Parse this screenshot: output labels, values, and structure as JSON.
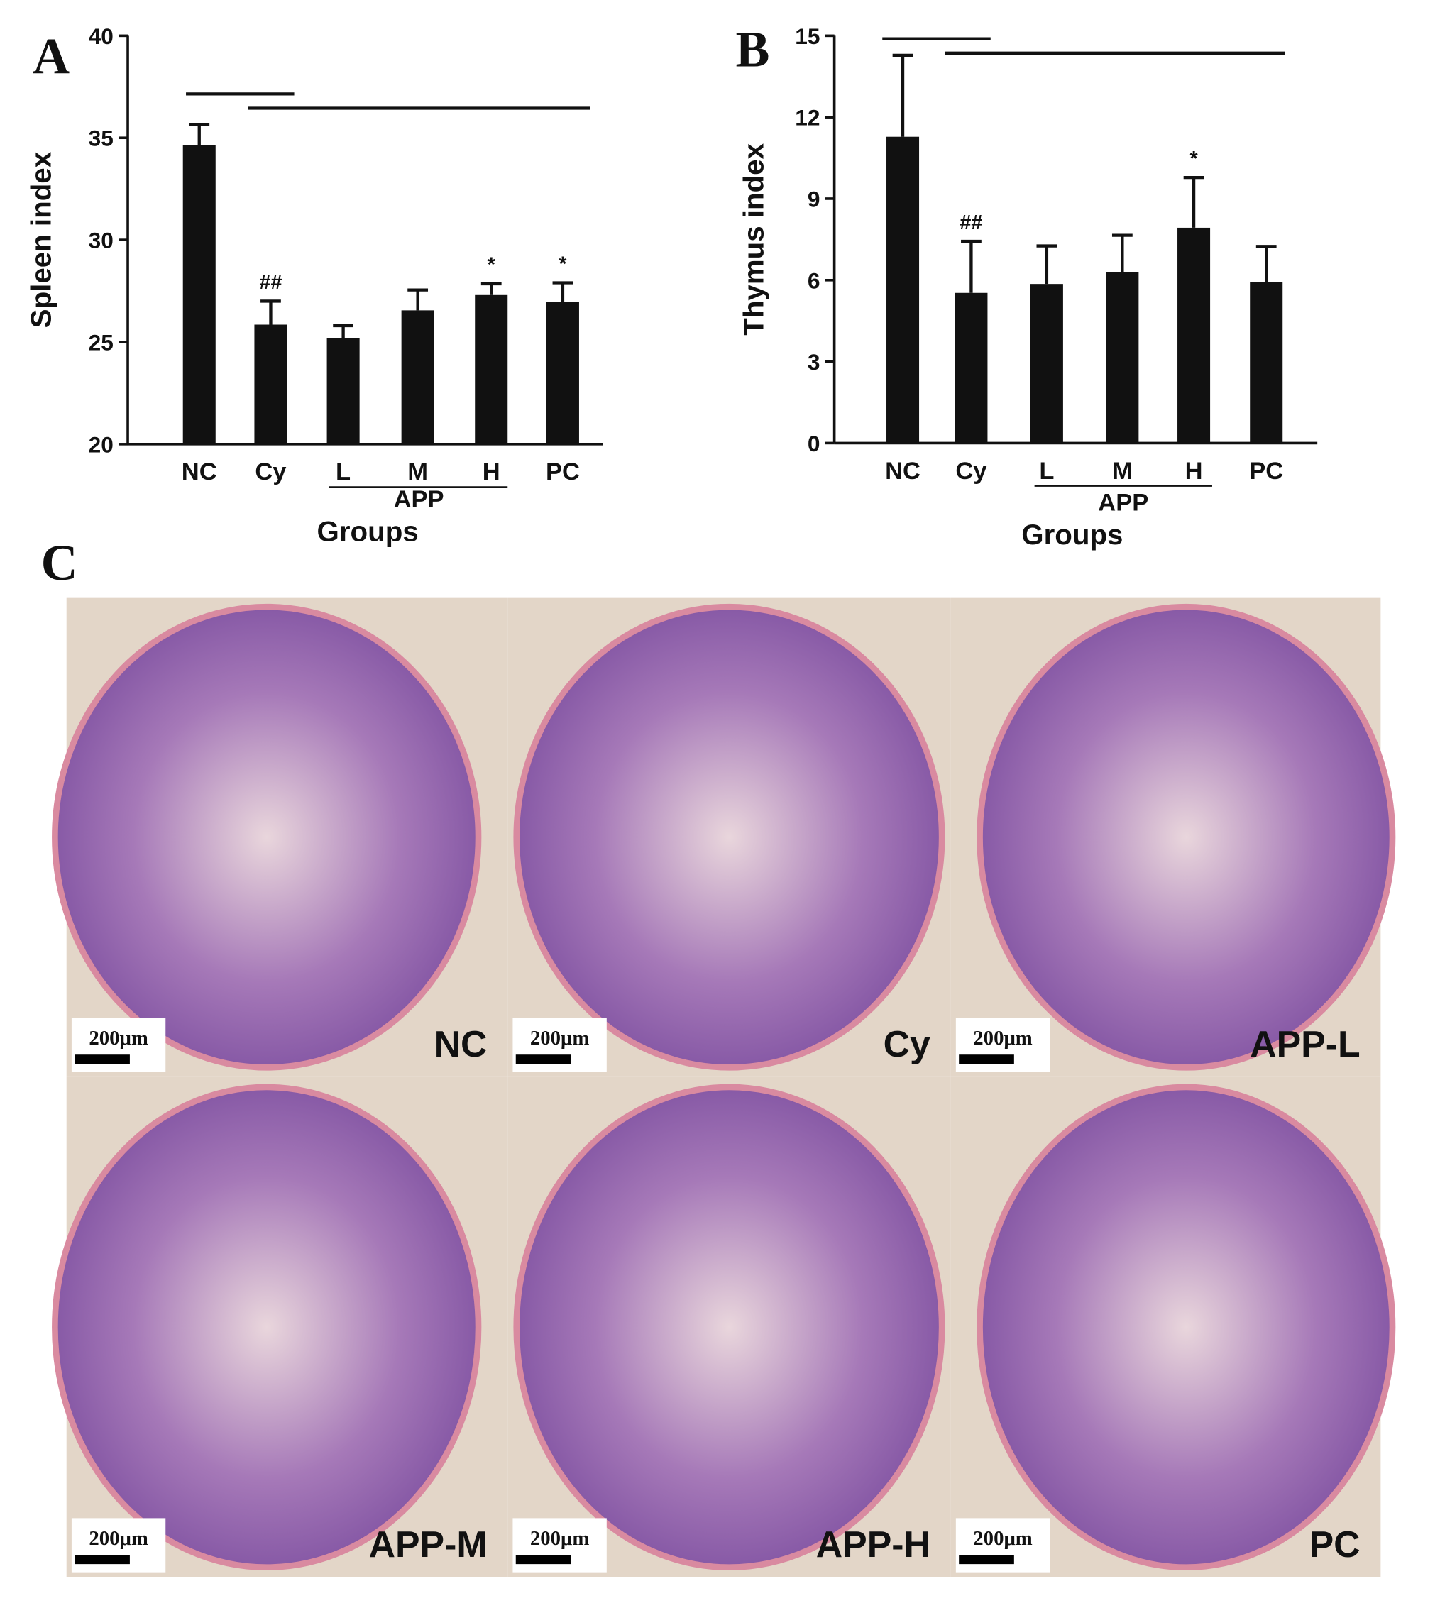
{
  "chart_data": [
    {
      "type": "bar",
      "panel": "A",
      "y_label": "Spleen index",
      "x_label": "Groups",
      "group_label": "APP",
      "categories": [
        "NC",
        "Cy",
        "L",
        "M",
        "H",
        "PC"
      ],
      "values": [
        34.65,
        25.85,
        25.2,
        26.55,
        27.3,
        26.95
      ],
      "errors": [
        1.0,
        1.15,
        0.6,
        1.0,
        0.55,
        0.95
      ],
      "value_annotations": [
        null,
        "##",
        null,
        null,
        "*",
        "*"
      ],
      "color": "#111111",
      "ylim": [
        20,
        40
      ],
      "yticks": [
        20,
        25,
        30,
        35,
        40
      ]
    },
    {
      "type": "bar",
      "panel": "B",
      "y_label": "Thymus index",
      "x_label": "Groups",
      "group_label": "APP",
      "categories": [
        "NC",
        "Cy",
        "L",
        "M",
        "H",
        "PC"
      ],
      "values": [
        11.28,
        5.53,
        5.86,
        6.3,
        7.93,
        5.94
      ],
      "errors": [
        3.0,
        1.9,
        1.4,
        1.35,
        1.85,
        1.3
      ],
      "value_annotations": [
        null,
        "##",
        null,
        null,
        "*",
        null
      ],
      "color": "#111111",
      "ylim": [
        0,
        15
      ],
      "yticks": [
        0,
        3,
        6,
        9,
        12,
        15
      ]
    }
  ],
  "panel_c": {
    "label": "C",
    "images": [
      {
        "label": "NC",
        "scale": "200μm"
      },
      {
        "label": "Cy",
        "scale": "200μm"
      },
      {
        "label": "APP-L",
        "scale": "200μm"
      },
      {
        "label": "APP-M",
        "scale": "200μm"
      },
      {
        "label": "APP-H",
        "scale": "200μm"
      },
      {
        "label": "PC",
        "scale": "200μm"
      }
    ]
  }
}
